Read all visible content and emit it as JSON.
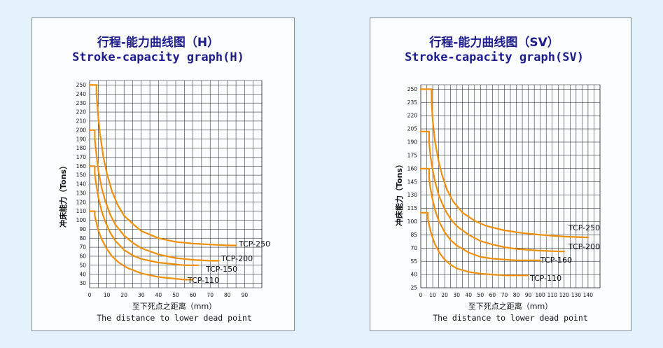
{
  "chart_data": [
    {
      "type": "line",
      "title": "行程-能力曲线图（H）",
      "subtitle": "Stroke-capacity graph(H)",
      "xlabel": "至下死点之距离（mm）",
      "xlabel_en": "The distance to lower dead point",
      "ylabel": "冲床能力（Tons）",
      "x_ticks": [
        0,
        10,
        20,
        30,
        40,
        50,
        60,
        70,
        80,
        90
      ],
      "y_ticks": [
        30,
        40,
        50,
        60,
        70,
        80,
        90,
        100,
        110,
        120,
        130,
        140,
        150,
        160,
        170,
        180,
        190,
        200,
        210,
        220,
        230,
        240,
        250
      ],
      "xlim": [
        0,
        100
      ],
      "ylim": [
        25,
        255
      ],
      "grid": true,
      "series": [
        {
          "name": "TCP-250",
          "color": "#f0900a",
          "x": [
            0,
            4,
            4,
            5,
            6,
            8,
            10,
            13,
            16,
            20,
            25,
            30,
            40,
            50,
            60,
            70,
            80,
            85
          ],
          "y": [
            250,
            250,
            240,
            215,
            196,
            170,
            152,
            132,
            118,
            105,
            96,
            88,
            80,
            76,
            74,
            73,
            72,
            72
          ]
        },
        {
          "name": "TCP-200",
          "color": "#f0900a",
          "x": [
            0,
            3,
            3,
            4,
            5,
            7,
            9,
            12,
            15,
            20,
            25,
            30,
            40,
            50,
            60,
            70,
            75
          ],
          "y": [
            200,
            200,
            190,
            172,
            156,
            136,
            122,
            106,
            95,
            83,
            75,
            69,
            62,
            58,
            56,
            55,
            55
          ]
        },
        {
          "name": "TCP-150",
          "color": "#f0900a",
          "x": [
            0,
            3,
            3,
            4,
            5,
            7,
            9,
            12,
            15,
            20,
            25,
            30,
            40,
            50,
            55,
            63
          ],
          "y": [
            160,
            160,
            151,
            138,
            126,
            110,
            99,
            86,
            77,
            67,
            61,
            57,
            53,
            51,
            50,
            50
          ]
        },
        {
          "name": "TCP-110",
          "color": "#f0900a",
          "x": [
            0,
            3,
            3,
            4,
            5,
            7,
            10,
            13,
            17,
            22,
            30,
            40,
            50,
            55,
            60
          ],
          "y": [
            110,
            110,
            105,
            97,
            89,
            79,
            68,
            60,
            53,
            47,
            41,
            37,
            35,
            34,
            34
          ]
        }
      ]
    },
    {
      "type": "line",
      "title": "行程-能力曲线图（SV）",
      "subtitle": "Stroke-capacity graph(SV)",
      "xlabel": "至下死点之距离（mm）",
      "xlabel_en": "The distance to lower dead point",
      "ylabel": "冲床能力（Tons）",
      "x_ticks": [
        0,
        10,
        20,
        30,
        40,
        50,
        60,
        70,
        80,
        90,
        100,
        110,
        120,
        130,
        140
      ],
      "y_ticks": [
        25,
        40,
        55,
        70,
        85,
        100,
        115,
        130,
        145,
        160,
        175,
        190,
        205,
        220,
        235,
        250
      ],
      "xlim": [
        0,
        150
      ],
      "ylim": [
        25,
        255
      ],
      "grid": true,
      "series": [
        {
          "name": "TCP-250",
          "color": "#f0900a",
          "x": [
            0,
            9,
            9,
            10,
            12,
            15,
            18,
            22,
            27,
            35,
            45,
            55,
            70,
            85,
            100,
            120,
            140
          ],
          "y": [
            250,
            250,
            237,
            214,
            190,
            168,
            152,
            136,
            123,
            110,
            101,
            95,
            90,
            87,
            85,
            83,
            82
          ]
        },
        {
          "name": "TCP-200",
          "color": "#f0900a",
          "x": [
            0,
            7,
            7,
            8,
            10,
            12,
            15,
            20,
            25,
            30,
            40,
            50,
            60,
            70,
            80,
            100,
            120
          ],
          "y": [
            202,
            202,
            190,
            175,
            158,
            145,
            130,
            114,
            103,
            95,
            85,
            78,
            74,
            71,
            69,
            67,
            66
          ]
        },
        {
          "name": "TCP-160",
          "color": "#f0900a",
          "x": [
            0,
            7,
            7,
            8,
            10,
            12,
            15,
            20,
            25,
            30,
            40,
            50,
            60,
            70,
            80,
            90,
            100
          ],
          "y": [
            160,
            160,
            150,
            138,
            124,
            113,
            101,
            88,
            79,
            73,
            65,
            60,
            58,
            57,
            56,
            56,
            56
          ]
        },
        {
          "name": "TCP-110",
          "color": "#f0900a",
          "x": [
            0,
            6,
            6,
            7,
            9,
            12,
            16,
            20,
            25,
            30,
            40,
            50,
            60,
            70,
            80,
            90
          ],
          "y": [
            110,
            110,
            103,
            96,
            85,
            74,
            64,
            57,
            51,
            47,
            43,
            41,
            40,
            39,
            39,
            39
          ]
        }
      ]
    }
  ]
}
